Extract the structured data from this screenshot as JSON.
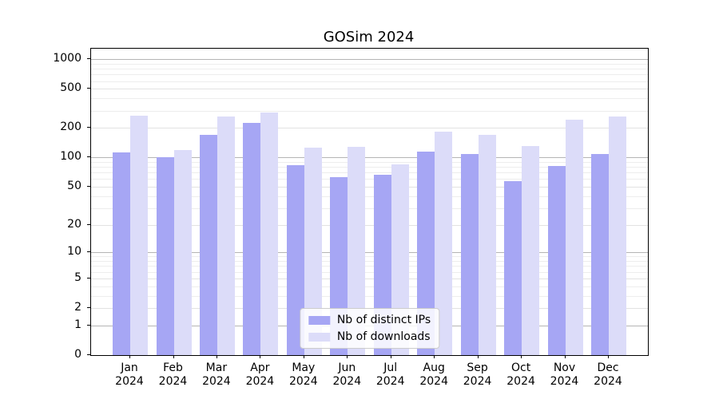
{
  "chart_data": {
    "type": "bar",
    "title": "GOSim 2024",
    "categories": [
      "Jan 2024",
      "Feb 2024",
      "Mar 2024",
      "Apr 2024",
      "May 2024",
      "Jun 2024",
      "Jul 2024",
      "Aug 2024",
      "Sep 2024",
      "Oct 2024",
      "Nov 2024",
      "Dec 2024"
    ],
    "series": [
      {
        "name": "Nb of distinct IPs",
        "color": "#a6a6f4",
        "values": [
          113,
          100,
          169,
          225,
          83,
          63,
          66,
          115,
          108,
          57,
          82,
          108
        ]
      },
      {
        "name": "Nb of downloads",
        "color": "#dcdcf9",
        "values": [
          268,
          120,
          260,
          290,
          126,
          128,
          85,
          182,
          169,
          130,
          244,
          260
        ]
      }
    ],
    "xlabel": "",
    "ylabel": "",
    "yscale": "log1p",
    "ylim": [
      0,
      1280
    ],
    "y_ticks": [
      0,
      1,
      2,
      5,
      10,
      20,
      50,
      100,
      200,
      500,
      1000
    ],
    "y_minor_gridlines": [
      3,
      4,
      6,
      7,
      8,
      9,
      30,
      40,
      60,
      70,
      80,
      90,
      300,
      400,
      600,
      700,
      800,
      900
    ],
    "grid": true,
    "legend_position": "lower center",
    "colors": {
      "background": "#ffffff",
      "axis": "#000000",
      "grid_decade": "#b5b5b5",
      "grid_major": "#e2e2e2",
      "grid_minor": "#ededed",
      "legend_border": "#cccccc"
    }
  }
}
